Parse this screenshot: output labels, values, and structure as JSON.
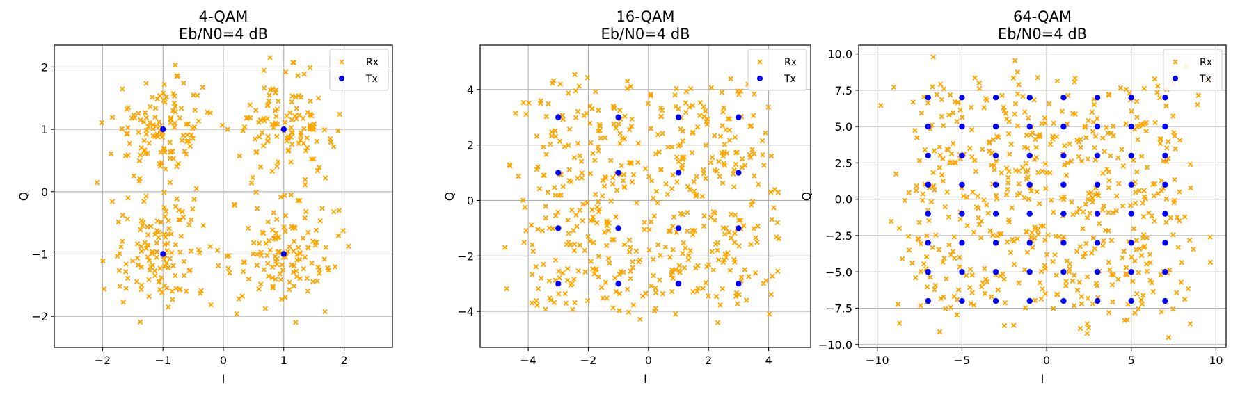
{
  "colors": {
    "rx": "#ffa500",
    "tx": "#0000ff",
    "grid": "#b0b0b0",
    "frame": "#000000"
  },
  "chart_data": [
    {
      "type": "scatter",
      "title": "4-QAM",
      "subtitle": "Eb/N0=4 dB",
      "xlabel": "I",
      "ylabel": "Q",
      "xlim": [
        -2.8,
        2.8
      ],
      "ylim": [
        -2.5,
        2.35
      ],
      "xticks": [
        -2,
        -1,
        0,
        1,
        2
      ],
      "xtick_labels": [
        "−2",
        "−1",
        "0",
        "1",
        "2"
      ],
      "yticks": [
        -2,
        -1,
        0,
        1,
        2
      ],
      "ytick_labels": [
        "−2",
        "−1",
        "0",
        "1",
        "2"
      ],
      "grid": true,
      "legend": {
        "placement": "top-right",
        "entries": [
          "Rx",
          "Tx"
        ]
      },
      "series": [
        {
          "name": "Tx",
          "marker": "circle",
          "points": [
            [
              -1,
              1
            ],
            [
              1,
              1
            ],
            [
              -1,
              -1
            ],
            [
              1,
              -1
            ]
          ]
        },
        {
          "name": "Rx",
          "marker": "x",
          "noise_sigma": 0.42,
          "points_per_symbol": 125,
          "count": 500
        }
      ]
    },
    {
      "type": "scatter",
      "title": "16-QAM",
      "subtitle": "Eb/N0=4 dB",
      "xlabel": "I",
      "ylabel": "Q",
      "xlim": [
        -5.6,
        5.4
      ],
      "ylim": [
        -5.3,
        5.6
      ],
      "xticks": [
        -4,
        -2,
        0,
        2,
        4
      ],
      "xtick_labels": [
        "−4",
        "−2",
        "0",
        "2",
        "4"
      ],
      "yticks": [
        -4,
        -2,
        0,
        2,
        4
      ],
      "ytick_labels": [
        "−4",
        "−2",
        "0",
        "2",
        "4"
      ],
      "grid": true,
      "legend": {
        "placement": "top-right",
        "entries": [
          "Rx",
          "Tx"
        ]
      },
      "series": [
        {
          "name": "Tx",
          "marker": "circle",
          "levels": [
            -3,
            -1,
            1,
            3
          ]
        },
        {
          "name": "Rx",
          "marker": "x",
          "noise_sigma": 0.72,
          "points_per_symbol": 32,
          "count": 512
        }
      ]
    },
    {
      "type": "scatter",
      "title": "64-QAM",
      "subtitle": "Eb/N0=4 dB",
      "xlabel": "I",
      "ylabel": "Q",
      "xlim": [
        -11.1,
        10.6
      ],
      "ylim": [
        -10.2,
        10.6
      ],
      "xticks": [
        -10,
        -5,
        0,
        5,
        10
      ],
      "xtick_labels": [
        "−10",
        "−5",
        "0",
        "5",
        "10"
      ],
      "yticks": [
        -10,
        -7.5,
        -5,
        -2.5,
        0,
        2.5,
        5,
        7.5,
        10
      ],
      "ytick_labels": [
        "−10.0",
        "−7.5",
        "−5.0",
        "−2.5",
        "0.0",
        "2.5",
        "5.0",
        "7.5",
        "10.0"
      ],
      "grid": true,
      "legend": {
        "placement": "top-right",
        "entries": [
          "Rx",
          "Tx"
        ]
      },
      "series": [
        {
          "name": "Tx",
          "marker": "circle",
          "levels": [
            -7,
            -5,
            -3,
            -1,
            1,
            3,
            5,
            7
          ]
        },
        {
          "name": "Rx",
          "marker": "x",
          "noise_sigma": 1.3,
          "points_per_symbol": 9,
          "count": 576
        }
      ]
    }
  ]
}
